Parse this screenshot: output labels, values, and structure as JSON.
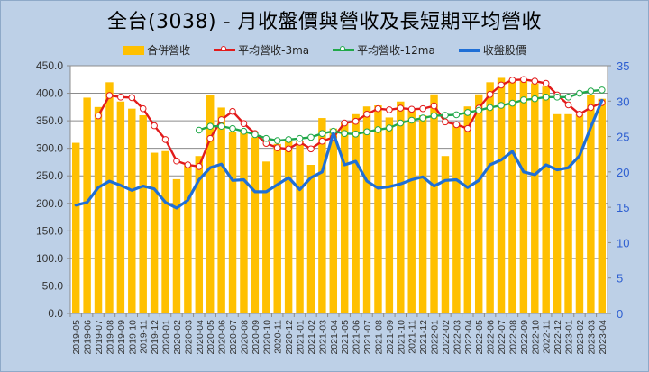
{
  "title": "全台(3038)  - 月收盤價與營收及長短期平均營收",
  "legend": [
    {
      "label": "合併營收",
      "color": "#ffc000",
      "kind": "bar"
    },
    {
      "label": "平均營收-3ma",
      "color": "#e21b1b",
      "kind": "line-marker"
    },
    {
      "label": "平均營收-12ma",
      "color": "#21a84a",
      "kind": "line-marker"
    },
    {
      "label": "收盤股價",
      "color": "#1f6fd6",
      "kind": "line"
    }
  ],
  "chart_data": {
    "type": "bar+line",
    "title": "全台(3038)  - 月收盤價與營收及長短期平均營收",
    "xlabel": "",
    "ylabel_left": "",
    "ylabel_right": "",
    "ylim_left": [
      0,
      450
    ],
    "yticks_left": [
      "0.0",
      "50.0",
      "100.0",
      "150.0",
      "200.0",
      "250.0",
      "300.0",
      "350.0",
      "400.0",
      "450.0"
    ],
    "ylim_right": [
      0,
      35
    ],
    "yticks_right": [
      "0",
      "5",
      "10",
      "15",
      "20",
      "25",
      "30",
      "35"
    ],
    "grid": true,
    "legend_position": "top",
    "categories": [
      "2019-05",
      "2019-06",
      "2019-07",
      "2019-08",
      "2019-09",
      "2019-10",
      "2019-11",
      "2019-12",
      "2020-01",
      "2020-02",
      "2020-03",
      "2020-04",
      "2020-05",
      "2020-06",
      "2020-07",
      "2020-08",
      "2020-09",
      "2020-10",
      "2020-11",
      "2020-12",
      "2021-01",
      "2021-02",
      "2021-03",
      "2021-04",
      "2021-05",
      "2021-06",
      "2021-07",
      "2021-08",
      "2021-09",
      "2021-10",
      "2021-11",
      "2021-12",
      "2022-01",
      "2022-02",
      "2022-03",
      "2022-04",
      "2022-05",
      "2022-06",
      "2022-07",
      "2022-08",
      "2022-09",
      "2022-10",
      "2022-11",
      "2022-12",
      "2023-01",
      "2023-02",
      "2023-03",
      "2023-04"
    ],
    "series": [
      {
        "name": "合併營收",
        "type": "bar",
        "axis": "left",
        "color": "#ffc000",
        "values": [
          310,
          392,
          375,
          420,
          385,
          372,
          360,
          292,
          295,
          244,
          270,
          286,
          397,
          374,
          330,
          330,
          320,
          276,
          308,
          313,
          313,
          270,
          355,
          336,
          348,
          362,
          376,
          378,
          356,
          385,
          372,
          360,
          398,
          286,
          346,
          376,
          398,
          420,
          428,
          425,
          423,
          418,
          412,
          362,
          362,
          362,
          397,
          390
        ]
      },
      {
        "name": "平均營收-3ma",
        "type": "line",
        "axis": "left",
        "color": "#e21b1b",
        "values": [
          null,
          null,
          359,
          396,
          393,
          392,
          372,
          341,
          316,
          277,
          270,
          267,
          318,
          352,
          367,
          345,
          327,
          309,
          301,
          299,
          311,
          299,
          313,
          320,
          346,
          349,
          362,
          372,
          370,
          373,
          371,
          372,
          377,
          348,
          343,
          336,
          373,
          398,
          415,
          424,
          425,
          422,
          418,
          397,
          379,
          362,
          374,
          383
        ]
      },
      {
        "name": "平均營收-12ma",
        "type": "line",
        "axis": "left",
        "color": "#21a84a",
        "values": [
          null,
          null,
          null,
          null,
          null,
          null,
          null,
          null,
          null,
          null,
          null,
          333,
          340,
          340,
          336,
          331,
          325,
          318,
          314,
          316,
          318,
          320,
          327,
          331,
          327,
          326,
          330,
          334,
          337,
          346,
          351,
          355,
          359,
          360,
          361,
          365,
          369,
          374,
          378,
          382,
          388,
          390,
          393,
          393,
          393,
          400,
          404,
          406
        ]
      },
      {
        "name": "收盤股價",
        "type": "line",
        "axis": "right",
        "color": "#1f6fd6",
        "values": [
          15.3,
          15.7,
          17.8,
          18.7,
          18.1,
          17.4,
          18.0,
          17.6,
          15.7,
          14.9,
          16.0,
          18.9,
          20.6,
          21.1,
          18.8,
          18.9,
          17.2,
          17.2,
          18.2,
          19.2,
          17.5,
          19.2,
          20.0,
          25.5,
          21.0,
          21.5,
          18.7,
          17.7,
          17.9,
          18.3,
          18.9,
          19.3,
          18.0,
          18.8,
          18.9,
          17.8,
          18.8,
          21.0,
          21.7,
          22.9,
          20.0,
          19.6,
          21.0,
          20.3,
          20.6,
          22.3,
          26.3,
          30.1
        ]
      }
    ]
  }
}
